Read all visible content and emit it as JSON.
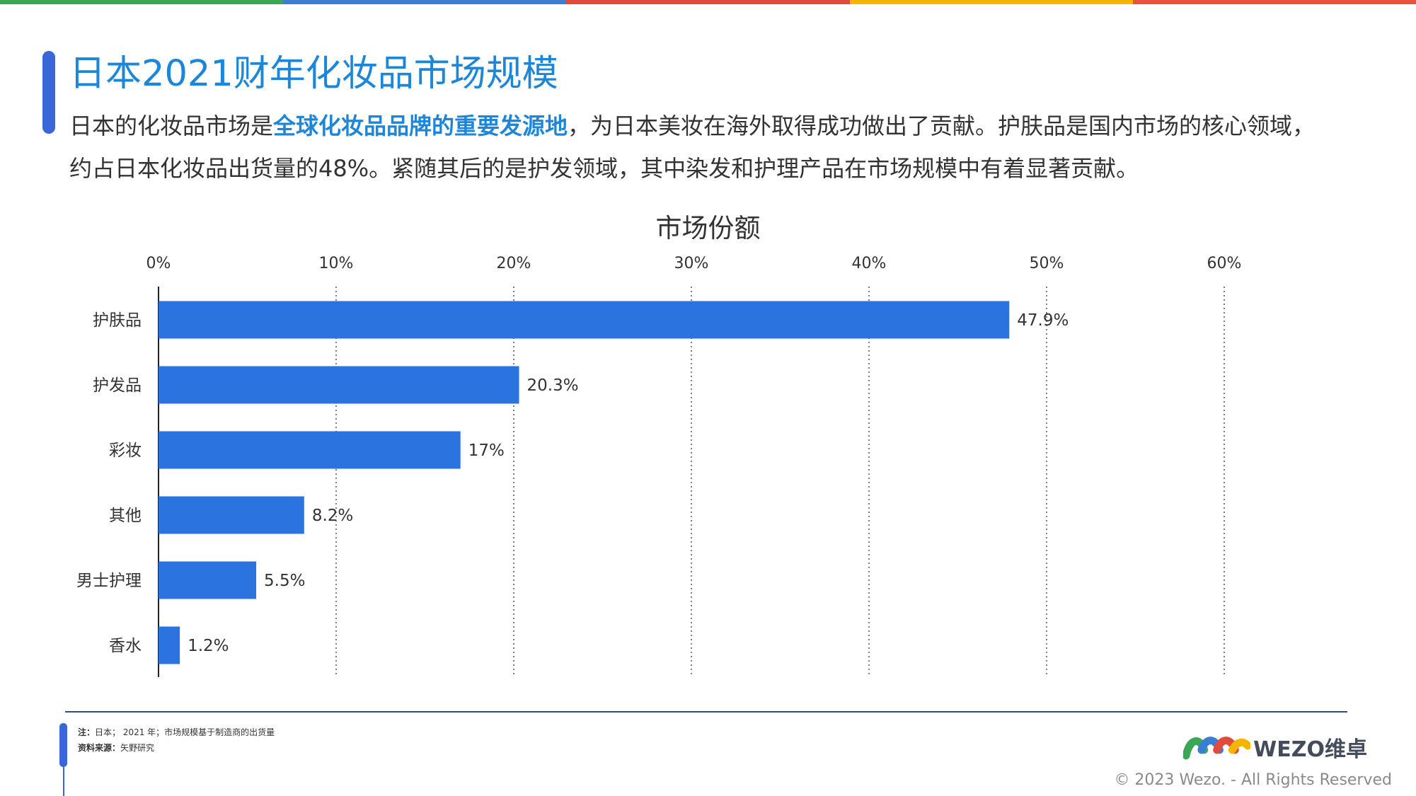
{
  "colors": {
    "accent": "#1c86d8",
    "bar": "#2b73df",
    "topbar": [
      "#3aa757",
      "#3b7fd4",
      "#e24a3b",
      "#f4b400",
      "#e8553a"
    ]
  },
  "header": {
    "title": "日本2021财年化妆品市场规模",
    "description_part1": "日本的化妆品市场是",
    "description_highlight": "全球化妆品品牌的重要发源地",
    "description_part2": "，为日本美妆在海外取得成功做出了贡献。护肤品是国内市场的核心领域，约占日本化妆品出货量的48%。紧随其后的是护发领域，其中染发和护理产品在市场规模中有着显著贡献。"
  },
  "chart_data": {
    "type": "bar",
    "orientation": "horizontal",
    "title": "市场份额",
    "categories": [
      "护肤品",
      "护发品",
      "彩妆",
      "其他",
      "男士护理",
      "香水"
    ],
    "values": [
      47.9,
      20.3,
      17,
      8.2,
      5.5,
      1.2
    ],
    "data_labels": [
      "47.9%",
      "20.3%",
      "17%",
      "8.2%",
      "5.5%",
      "1.2%"
    ],
    "xlim": [
      0,
      60
    ],
    "x_ticks": [
      0,
      10,
      20,
      30,
      40,
      50,
      60
    ],
    "x_tick_labels": [
      "0%",
      "10%",
      "20%",
      "30%",
      "40%",
      "50%",
      "60%"
    ],
    "x_axis_position": "top",
    "grid": "vertical-dotted",
    "legend": "none"
  },
  "footer": {
    "note_label": "注：",
    "note_text": "日本； 2021 年；市场规模基于制造商的出货量",
    "source_label": "资料来源：",
    "source_text": "矢野研究",
    "logo_text": "WEZO维卓",
    "copyright": "© 2023 Wezo. - All Rights Reserved"
  }
}
